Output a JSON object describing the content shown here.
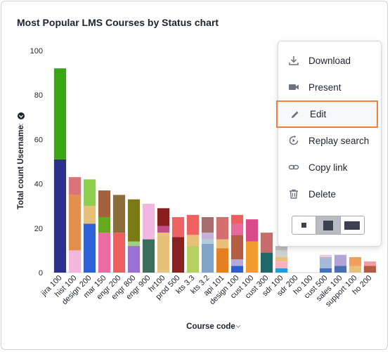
{
  "card": {
    "title": "Most Popular LMS Courses by Status chart"
  },
  "menu": {
    "items": [
      {
        "label": "Download",
        "icon": "download-icon"
      },
      {
        "label": "Present",
        "icon": "video-icon"
      },
      {
        "label": "Edit",
        "icon": "pencil-icon"
      },
      {
        "label": "Replay search",
        "icon": "replay-icon"
      },
      {
        "label": "Copy link",
        "icon": "link-icon"
      },
      {
        "label": "Delete",
        "icon": "trash-icon"
      }
    ],
    "active_item": "Edit",
    "highlight_color": "#f0803c",
    "size_options": [
      "small",
      "medium",
      "large"
    ],
    "selected_size": "medium"
  },
  "chart_data": {
    "type": "bar",
    "stacked": true,
    "title": "Most Popular LMS Courses by Status chart",
    "xlabel": "Course code",
    "ylabel": "Total count Username",
    "ylim": [
      0,
      100
    ],
    "yticks": [
      0,
      20,
      40,
      60,
      80,
      100
    ],
    "categories": [
      "jira 100",
      "hist 100",
      "design 200",
      "mar 150",
      "engr 200",
      "engr 800",
      "engr 900",
      "hr100",
      "prod 500",
      "kts 3.3",
      "kts 3.2",
      "api 101",
      "design 100",
      "cust 100",
      "cust 300",
      "sdr 100",
      "sdr 200",
      "ho 100",
      "cust 500",
      "sales 100",
      "support 100",
      "ho 200"
    ],
    "bars": [
      {
        "segments": [
          [
            51,
            "#2b2f8f"
          ],
          [
            41,
            "#3aa614"
          ]
        ]
      },
      {
        "segments": [
          [
            10,
            "#f4b7dc"
          ],
          [
            25,
            "#e3904f"
          ],
          [
            8,
            "#d9747a"
          ]
        ]
      },
      {
        "segments": [
          [
            22,
            "#2d63d8"
          ],
          [
            8,
            "#e8c07a"
          ],
          [
            12,
            "#8fd14f"
          ]
        ]
      },
      {
        "segments": [
          [
            18,
            "#ef6aa5"
          ],
          [
            7,
            "#64aa1f"
          ],
          [
            12,
            "#a1623c"
          ]
        ]
      },
      {
        "segments": [
          [
            18,
            "#ee5e5e"
          ],
          [
            17,
            "#8a6d3b"
          ]
        ]
      },
      {
        "segments": [
          [
            12,
            "#9b6fd4"
          ],
          [
            2,
            "#9fd17f"
          ],
          [
            19,
            "#7b7b16"
          ]
        ]
      },
      {
        "segments": [
          [
            15,
            "#3b6e5e"
          ],
          [
            16,
            "#f3b6e0"
          ]
        ]
      },
      {
        "segments": [
          [
            18,
            "#e8c17a"
          ],
          [
            3,
            "#c0508d"
          ],
          [
            8,
            "#8b1c1c"
          ]
        ]
      },
      {
        "segments": [
          [
            16,
            "#8b2121"
          ],
          [
            9,
            "#ee6262"
          ]
        ]
      },
      {
        "segments": [
          [
            12,
            "#b3d15f"
          ],
          [
            5,
            "#e8c07a"
          ],
          [
            9,
            "#ee6262"
          ]
        ]
      },
      {
        "segments": [
          [
            13,
            "#7fa3c9"
          ],
          [
            2,
            "#b3cde0"
          ],
          [
            3,
            "#c5b0d9"
          ],
          [
            7,
            "#a76d6d"
          ]
        ]
      },
      {
        "segments": [
          [
            11,
            "#e67e22"
          ],
          [
            4,
            "#e8c07a"
          ],
          [
            10,
            "#d46f6f"
          ]
        ]
      },
      {
        "segments": [
          [
            3,
            "#2b5fd0"
          ],
          [
            3,
            "#b0a9d9"
          ],
          [
            11,
            "#b25c46"
          ],
          [
            5,
            "#e86a9c"
          ],
          [
            4,
            "#ee5e5e"
          ]
        ]
      },
      {
        "segments": [
          [
            14,
            "#f49b2e"
          ],
          [
            10,
            "#d94a8c"
          ]
        ]
      },
      {
        "segments": [
          [
            9,
            "#1e6a6a"
          ],
          [
            9,
            "#c76b6b"
          ]
        ]
      },
      {
        "segments": [
          [
            2,
            "#1aa0e0"
          ],
          [
            3,
            "#ffb0c0"
          ],
          [
            2,
            "#e8c07a"
          ],
          [
            3,
            "#cfcfcf"
          ],
          [
            2,
            "#bcbcbc"
          ]
        ]
      },
      {
        "segments": []
      },
      {
        "segments": []
      },
      {
        "segments": [
          [
            2,
            "#4071c5"
          ],
          [
            5,
            "#a4bad8"
          ],
          [
            1,
            "#f7c6d6"
          ]
        ]
      },
      {
        "segments": [
          [
            3,
            "#4a6fb0"
          ],
          [
            5,
            "#b4a3d8"
          ]
        ]
      },
      {
        "segments": [
          [
            3,
            "#e8c07a"
          ],
          [
            4,
            "#f0a05a"
          ]
        ]
      },
      {
        "segments": [
          [
            3,
            "#b25c46"
          ],
          [
            2,
            "#ef9da3"
          ]
        ]
      }
    ]
  }
}
